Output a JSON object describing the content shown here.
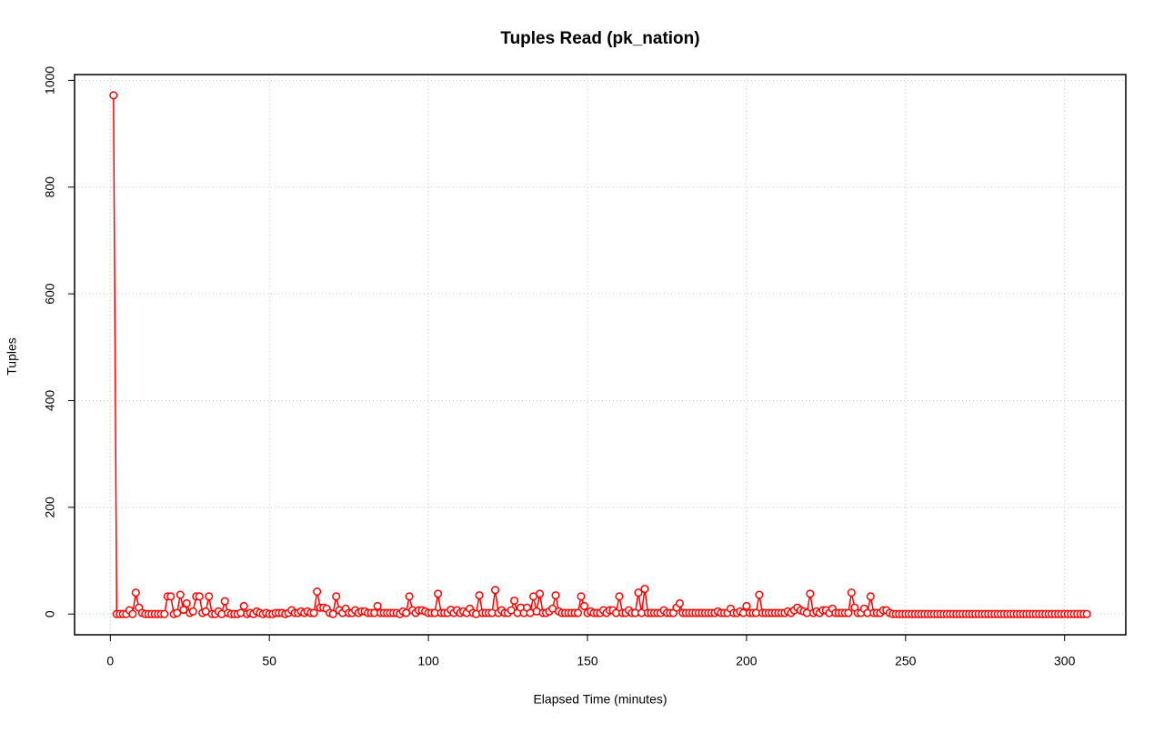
{
  "chart_data": {
    "type": "line",
    "title": "Tuples Read (pk_nation)",
    "x_label": "Elapsed Time (minutes)",
    "y_label": "Tuples",
    "color": "#ff0000",
    "grid": true,
    "x": [
      1,
      2,
      3,
      4,
      5,
      6,
      7,
      8,
      9,
      10,
      11,
      12,
      13,
      14,
      15,
      16,
      17,
      18,
      19,
      20,
      21,
      22,
      23,
      24,
      25,
      26,
      27,
      28,
      29,
      30,
      31,
      32,
      33,
      34,
      35,
      36,
      37,
      38,
      39,
      40,
      41,
      42,
      43,
      44,
      45,
      46,
      47,
      48,
      49,
      50,
      51,
      52,
      53,
      54,
      55,
      56,
      57,
      58,
      59,
      60,
      61,
      62,
      63,
      64,
      65,
      66,
      67,
      68,
      69,
      70,
      71,
      72,
      73,
      74,
      75,
      76,
      77,
      78,
      79,
      80,
      81,
      82,
      83,
      84,
      85,
      86,
      87,
      88,
      89,
      90,
      91,
      92,
      93,
      94,
      95,
      96,
      97,
      98,
      99,
      100,
      101,
      102,
      103,
      104,
      105,
      106,
      107,
      108,
      109,
      110,
      111,
      112,
      113,
      114,
      115,
      116,
      117,
      118,
      119,
      120,
      121,
      122,
      123,
      124,
      125,
      126,
      127,
      128,
      129,
      130,
      131,
      132,
      133,
      134,
      135,
      136,
      137,
      138,
      139,
      140,
      141,
      142,
      143,
      144,
      145,
      146,
      147,
      148,
      149,
      150,
      151,
      152,
      153,
      154,
      155,
      156,
      157,
      158,
      159,
      160,
      161,
      162,
      163,
      164,
      165,
      166,
      167,
      168,
      169,
      170,
      171,
      172,
      173,
      174,
      175,
      176,
      177,
      178,
      179,
      180,
      181,
      182,
      183,
      184,
      185,
      186,
      187,
      188,
      189,
      190,
      191,
      192,
      193,
      194,
      195,
      196,
      197,
      198,
      199,
      200,
      201,
      202,
      203,
      204,
      205,
      206,
      207,
      208,
      209,
      210,
      211,
      212,
      213,
      214,
      215,
      216,
      217,
      218,
      219,
      220,
      221,
      222,
      223,
      224,
      225,
      226,
      227,
      228,
      229,
      230,
      231,
      232,
      233,
      234,
      235,
      236,
      237,
      238,
      239,
      240,
      241,
      242,
      243,
      244,
      245,
      246,
      247,
      248,
      249,
      250,
      251,
      252,
      253,
      254,
      255,
      256,
      257,
      258,
      259,
      260,
      261,
      262,
      263,
      264,
      265,
      266,
      267,
      268,
      269,
      270,
      271,
      272,
      273,
      274,
      275,
      276,
      277,
      278,
      279,
      280,
      281,
      282,
      283,
      284,
      285,
      286,
      287,
      288,
      289,
      290,
      291,
      292,
      293,
      294,
      295,
      296,
      297,
      298,
      299,
      300,
      301,
      302,
      303,
      304,
      305,
      306,
      307
    ],
    "values": [
      972,
      0,
      0,
      0,
      0,
      7,
      0,
      40,
      12,
      2,
      0,
      0,
      0,
      0,
      0,
      0,
      0,
      33,
      33,
      0,
      2,
      36,
      8,
      20,
      2,
      5,
      33,
      33,
      2,
      5,
      33,
      0,
      0,
      5,
      0,
      24,
      2,
      0,
      0,
      0,
      2,
      15,
      0,
      2,
      0,
      5,
      2,
      0,
      2,
      0,
      0,
      2,
      2,
      2,
      0,
      2,
      7,
      2,
      2,
      5,
      2,
      5,
      2,
      2,
      42,
      12,
      12,
      10,
      2,
      0,
      33,
      7,
      2,
      10,
      2,
      2,
      7,
      2,
      5,
      5,
      2,
      2,
      2,
      15,
      2,
      2,
      2,
      2,
      2,
      2,
      0,
      5,
      2,
      33,
      7,
      2,
      7,
      7,
      5,
      2,
      2,
      2,
      38,
      2,
      2,
      2,
      8,
      2,
      7,
      2,
      5,
      2,
      10,
      2,
      0,
      35,
      2,
      2,
      2,
      2,
      45,
      2,
      7,
      2,
      2,
      7,
      25,
      2,
      12,
      2,
      12,
      2,
      33,
      5,
      38,
      2,
      2,
      5,
      10,
      35,
      5,
      2,
      2,
      2,
      2,
      2,
      2,
      33,
      15,
      2,
      5,
      2,
      2,
      2,
      7,
      2,
      7,
      7,
      2,
      33,
      2,
      2,
      7,
      2,
      2,
      40,
      2,
      47,
      2,
      2,
      2,
      2,
      2,
      7,
      2,
      2,
      2,
      12,
      20,
      2,
      2,
      2,
      2,
      2,
      2,
      2,
      2,
      2,
      2,
      2,
      5,
      2,
      2,
      2,
      10,
      2,
      2,
      5,
      2,
      15,
      2,
      2,
      2,
      36,
      2,
      2,
      2,
      2,
      2,
      2,
      2,
      2,
      5,
      2,
      7,
      12,
      7,
      5,
      2,
      38,
      2,
      5,
      2,
      7,
      7,
      2,
      10,
      2,
      2,
      2,
      2,
      2,
      40,
      12,
      2,
      2,
      10,
      2,
      33,
      2,
      2,
      2,
      7,
      7,
      2,
      0,
      0,
      0,
      0,
      0,
      0,
      0,
      0,
      0,
      0,
      0,
      0,
      0,
      0,
      0,
      0,
      0,
      0,
      0,
      0,
      0,
      0,
      0,
      0,
      0,
      0,
      0,
      0,
      0,
      0,
      0,
      0,
      0,
      0,
      0,
      0,
      0,
      0,
      0,
      0,
      0,
      0,
      0,
      0,
      0,
      0,
      0,
      0,
      0,
      0,
      0,
      0,
      0,
      0,
      0,
      0,
      0,
      0,
      0,
      0,
      0,
      0
    ],
    "xlim": [
      -11.24,
      319.24
    ],
    "ylim": [
      -38.88,
      1010.88
    ],
    "xticks": [
      0,
      50,
      100,
      150,
      200,
      250,
      300
    ],
    "yticks": [
      0,
      200,
      400,
      600,
      800,
      1000
    ]
  }
}
